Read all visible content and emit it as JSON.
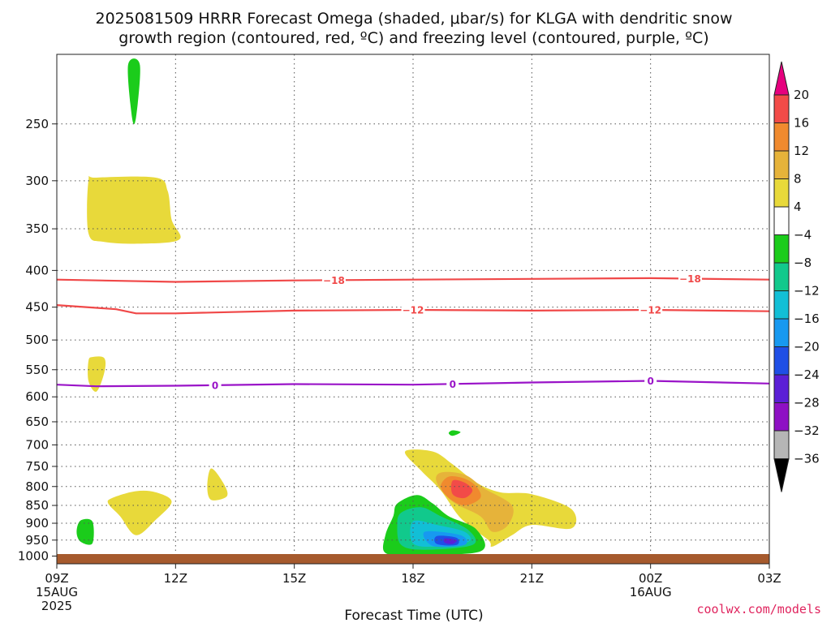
{
  "chart_data": {
    "type": "heatmap",
    "title": "2025081509 HRRR Forecast Omega (shaded, μbar/s) for KLGA with dendritic snow",
    "subtitle": "growth region (contoured, red, ºC) and freezing level (contoured, purple, ºC)",
    "xlabel": "Forecast Time (UTC)",
    "ylabel": "",
    "credit": "coolwx.com/models",
    "x_ticks": [
      {
        "hour": 9,
        "label": "09Z",
        "sub1": "15AUG",
        "sub2": "2025"
      },
      {
        "hour": 12,
        "label": "12Z",
        "sub1": "",
        "sub2": ""
      },
      {
        "hour": 15,
        "label": "15Z",
        "sub1": "",
        "sub2": ""
      },
      {
        "hour": 18,
        "label": "18Z",
        "sub1": "",
        "sub2": ""
      },
      {
        "hour": 21,
        "label": "21Z",
        "sub1": "",
        "sub2": ""
      },
      {
        "hour": 24,
        "label": "00Z",
        "sub1": "16AUG",
        "sub2": ""
      },
      {
        "hour": 27,
        "label": "03Z",
        "sub1": "",
        "sub2": ""
      }
    ],
    "y_ticks": [
      250,
      300,
      350,
      400,
      450,
      500,
      550,
      600,
      650,
      700,
      750,
      800,
      850,
      900,
      950,
      1000
    ],
    "ylim_hPa": [
      200,
      1025
    ],
    "y_scale": "log-pressure",
    "grid": true,
    "colorbar": {
      "labels": [
        "20",
        "16",
        "12",
        "8",
        "4",
        "−4",
        "−8",
        "−12",
        "−16",
        "−20",
        "−24",
        "−28",
        "−32",
        "−36"
      ],
      "colors": [
        "#e6007e",
        "#f24b48",
        "#f08a2e",
        "#e6b33a",
        "#e8d93a",
        "#ffffff",
        "#1bcc1b",
        "#11c98c",
        "#12bfd6",
        "#1799f0",
        "#1f4fe6",
        "#5b1fd6",
        "#8e10c4",
        "#b6b6b6",
        "#000000"
      ]
    },
    "contours": [
      {
        "kind": "temperature",
        "value": -18,
        "color": "#f04848",
        "points": [
          [
            9,
            412
          ],
          [
            12,
            415
          ],
          [
            15,
            413
          ],
          [
            18,
            412
          ],
          [
            21,
            411
          ],
          [
            24,
            410
          ],
          [
            27,
            412
          ]
        ],
        "label_hours": [
          16,
          25
        ]
      },
      {
        "kind": "temperature",
        "value": -12,
        "color": "#f04848",
        "points": [
          [
            9,
            447
          ],
          [
            10.5,
            453
          ],
          [
            11,
            459
          ],
          [
            12,
            459
          ],
          [
            15,
            455
          ],
          [
            18,
            454
          ],
          [
            21,
            455
          ],
          [
            24,
            454
          ],
          [
            27,
            456
          ]
        ],
        "label_hours": [
          18,
          24
        ]
      },
      {
        "kind": "freezing_level",
        "value": 0,
        "color": "#9a14c8",
        "points": [
          [
            9,
            577
          ],
          [
            10,
            580
          ],
          [
            12,
            579
          ],
          [
            15,
            576
          ],
          [
            18,
            577
          ],
          [
            21,
            573
          ],
          [
            24,
            570
          ],
          [
            27,
            575
          ]
        ],
        "label_hours": [
          13,
          19,
          24
        ]
      }
    ],
    "contour_labels": [
      "-18",
      "-12",
      "0"
    ],
    "omega_regions": [
      {
        "level": 4,
        "points": [
          [
            10.0,
            297
          ],
          [
            11.5,
            297
          ],
          [
            11.8,
            310
          ],
          [
            11.9,
            340
          ],
          [
            12.1,
            362
          ],
          [
            11.2,
            367
          ],
          [
            10.2,
            365
          ],
          [
            9.8,
            355
          ],
          [
            9.8,
            300
          ]
        ]
      },
      {
        "level": 4,
        "points": [
          [
            9.9,
            528
          ],
          [
            10.2,
            530
          ],
          [
            10.2,
            555
          ],
          [
            10.0,
            590
          ],
          [
            9.8,
            570
          ],
          [
            9.8,
            535
          ]
        ]
      },
      {
        "level": 4,
        "points": [
          [
            10.4,
            830
          ],
          [
            11.0,
            812
          ],
          [
            11.5,
            815
          ],
          [
            11.9,
            840
          ],
          [
            11.5,
            890
          ],
          [
            11.0,
            935
          ],
          [
            10.6,
            880
          ],
          [
            10.3,
            845
          ]
        ]
      },
      {
        "level": 4,
        "points": [
          [
            12.9,
            755
          ],
          [
            13.2,
            790
          ],
          [
            13.3,
            825
          ],
          [
            12.9,
            835
          ],
          [
            12.8,
            800
          ]
        ]
      },
      {
        "level": 4,
        "points": [
          [
            17.8,
            715
          ],
          [
            18.5,
            715
          ],
          [
            19.0,
            745
          ],
          [
            19.6,
            790
          ],
          [
            20.2,
            815
          ],
          [
            21.0,
            820
          ],
          [
            22.0,
            860
          ],
          [
            22.0,
            915
          ],
          [
            21.0,
            905
          ],
          [
            20.5,
            935
          ],
          [
            20.0,
            970
          ],
          [
            19.9,
            950
          ],
          [
            19.2,
            885
          ],
          [
            18.7,
            810
          ],
          [
            18.2,
            760
          ]
        ]
      },
      {
        "level": 8,
        "points": [
          [
            18.7,
            765
          ],
          [
            19.3,
            770
          ],
          [
            19.8,
            805
          ],
          [
            20.5,
            850
          ],
          [
            20.4,
            905
          ],
          [
            20.0,
            925
          ],
          [
            19.7,
            880
          ],
          [
            19.0,
            840
          ],
          [
            18.6,
            790
          ]
        ]
      },
      {
        "level": 12,
        "points": [
          [
            18.9,
            775
          ],
          [
            19.3,
            780
          ],
          [
            19.6,
            800
          ],
          [
            19.7,
            830
          ],
          [
            19.3,
            850
          ],
          [
            18.9,
            830
          ],
          [
            18.7,
            800
          ]
        ]
      },
      {
        "level": 16,
        "points": [
          [
            19.0,
            785
          ],
          [
            19.3,
            790
          ],
          [
            19.5,
            810
          ],
          [
            19.3,
            830
          ],
          [
            19.0,
            820
          ]
        ]
      },
      {
        "level": -4,
        "points": [
          [
            10.8,
            207
          ],
          [
            11.1,
            207
          ],
          [
            11.0,
            245
          ],
          [
            10.9,
            245
          ]
        ]
      },
      {
        "level": -4,
        "points": [
          [
            9.6,
            892
          ],
          [
            9.9,
            895
          ],
          [
            9.9,
            960
          ],
          [
            9.6,
            955
          ],
          [
            9.5,
            925
          ]
        ]
      },
      {
        "level": -4,
        "points": [
          [
            19.0,
            668
          ],
          [
            19.2,
            672
          ],
          [
            19.0,
            680
          ],
          [
            18.9,
            674
          ]
        ]
      },
      {
        "level": -4,
        "points": [
          [
            17.6,
            845
          ],
          [
            18.1,
            822
          ],
          [
            18.5,
            845
          ],
          [
            18.9,
            880
          ],
          [
            19.6,
            918
          ],
          [
            19.7,
            985
          ],
          [
            18.0,
            995
          ],
          [
            17.3,
            990
          ],
          [
            17.3,
            935
          ],
          [
            17.5,
            880
          ]
        ]
      },
      {
        "level": -8,
        "points": [
          [
            17.7,
            870
          ],
          [
            18.2,
            855
          ],
          [
            18.7,
            880
          ],
          [
            19.4,
            920
          ],
          [
            19.5,
            965
          ],
          [
            18.3,
            980
          ],
          [
            17.7,
            965
          ],
          [
            17.6,
            905
          ]
        ]
      },
      {
        "level": -12,
        "points": [
          [
            18.0,
            895
          ],
          [
            18.6,
            905
          ],
          [
            19.3,
            925
          ],
          [
            19.4,
            955
          ],
          [
            18.6,
            970
          ],
          [
            18.0,
            960
          ]
        ]
      },
      {
        "level": -16,
        "points": [
          [
            18.3,
            925
          ],
          [
            19.2,
            935
          ],
          [
            19.3,
            965
          ],
          [
            18.5,
            968
          ]
        ]
      },
      {
        "level": -20,
        "points": [
          [
            18.6,
            938
          ],
          [
            19.1,
            943
          ],
          [
            19.1,
            965
          ],
          [
            18.6,
            962
          ]
        ]
      },
      {
        "level": -24,
        "points": [
          [
            18.8,
            945
          ],
          [
            19.1,
            950
          ],
          [
            19.0,
            962
          ],
          [
            18.8,
            958
          ]
        ]
      }
    ],
    "surface_band_color": "#a65a2d"
  }
}
